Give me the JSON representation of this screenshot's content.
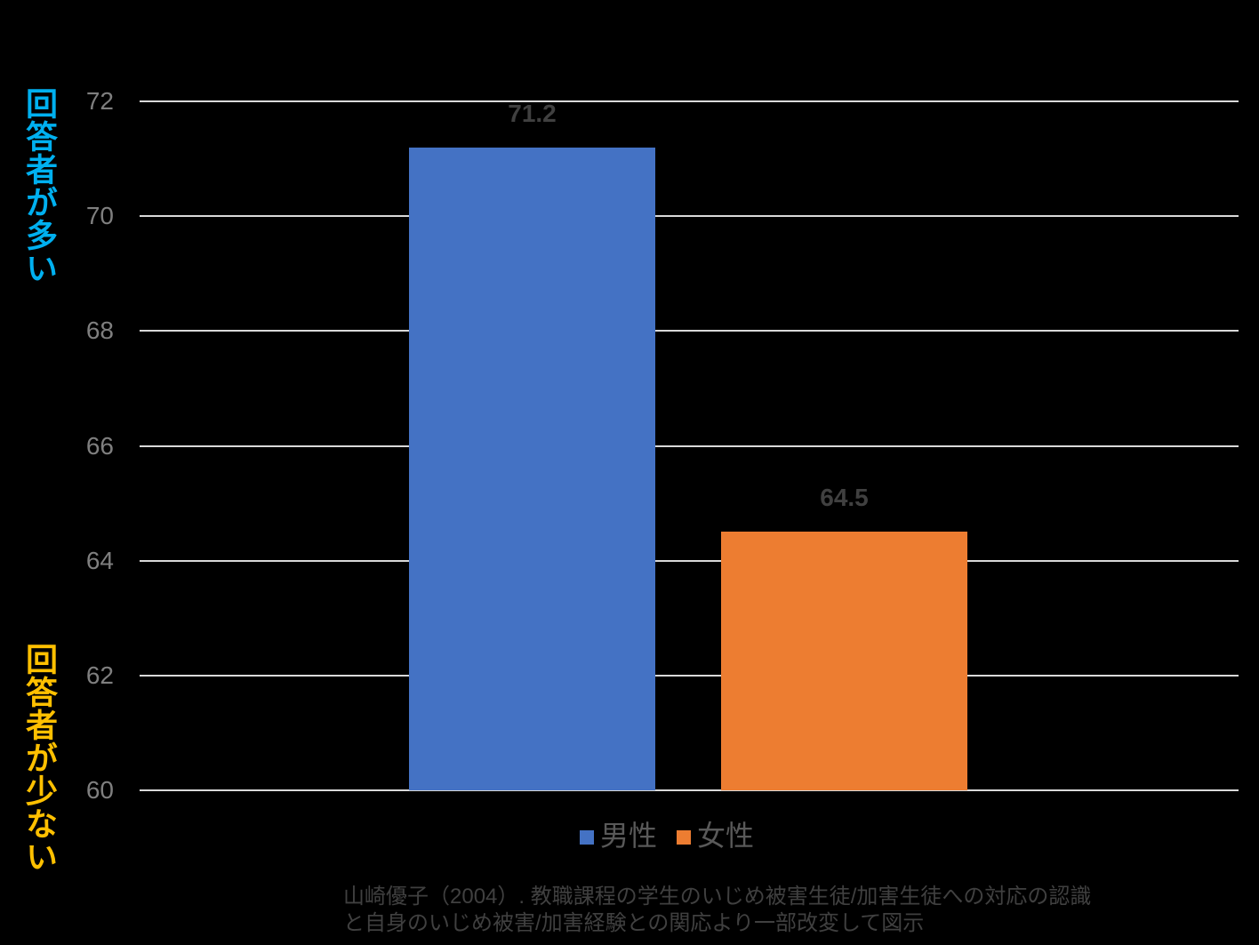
{
  "chart_data": {
    "type": "bar",
    "categories": [
      ""
    ],
    "series": [
      {
        "name": "男性",
        "values": [
          71.2
        ],
        "color": "#4472C4"
      },
      {
        "name": "女性",
        "values": [
          64.5
        ],
        "color": "#ED7D31"
      }
    ],
    "value_labels": [
      "71.2",
      "64.5"
    ],
    "title": "",
    "xlabel": "",
    "ylabel": "",
    "ylim": [
      60,
      72
    ],
    "yticks": [
      60,
      62,
      64,
      66,
      68,
      70,
      72
    ],
    "grid": true,
    "legend_position": "bottom",
    "gridline_color": "#D9D9D9",
    "tick_color": "#7F7F7F",
    "value_label_color": "#404040",
    "legend_text_color": "#595959",
    "background": "#000000"
  },
  "side_labels": {
    "top": {
      "text": "回答者が多い",
      "color": "#00B0F0"
    },
    "bottom": {
      "text": "回答者が少ない",
      "color": "#FFC000"
    }
  },
  "legend": {
    "items": [
      {
        "label": "男性",
        "color": "#4472C4"
      },
      {
        "label": "女性",
        "color": "#ED7D31"
      }
    ]
  },
  "caption": {
    "line1": "山崎優子（2004）. 教職課程の学生のいじめ被害生徒/加害生徒への対応の認識",
    "line2": "と自身のいじめ被害/加害経験との関応より一部改変して図示",
    "color": "#404040"
  }
}
